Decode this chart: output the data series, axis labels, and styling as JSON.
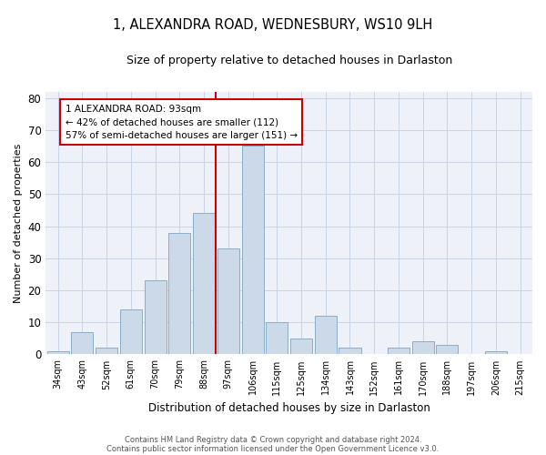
{
  "title": "1, ALEXANDRA ROAD, WEDNESBURY, WS10 9LH",
  "subtitle": "Size of property relative to detached houses in Darlaston",
  "xlabel": "Distribution of detached houses by size in Darlaston",
  "ylabel": "Number of detached properties",
  "footer1": "Contains HM Land Registry data © Crown copyright and database right 2024.",
  "footer2": "Contains public sector information licensed under the Open Government Licence v3.0.",
  "categories": [
    "34sqm",
    "43sqm",
    "52sqm",
    "61sqm",
    "70sqm",
    "79sqm",
    "88sqm",
    "97sqm",
    "106sqm",
    "115sqm",
    "125sqm",
    "134sqm",
    "143sqm",
    "152sqm",
    "161sqm",
    "170sqm",
    "188sqm",
    "197sqm",
    "206sqm",
    "215sqm"
  ],
  "values": [
    1,
    7,
    2,
    14,
    23,
    38,
    44,
    33,
    65,
    10,
    5,
    12,
    2,
    0,
    2,
    4,
    3,
    0,
    1,
    0
  ],
  "bar_color": "#ccd9e8",
  "bar_edge_color": "#8aaec8",
  "vline_bin_index": 6,
  "vline_color": "#cc0000",
  "annotation_text": "1 ALEXANDRA ROAD: 93sqm\n← 42% of detached houses are smaller (112)\n57% of semi-detached houses are larger (151) →",
  "annotation_box_color": "#ffffff",
  "annotation_box_edge": "#cc0000",
  "grid_color": "#c8d4e4",
  "background_color": "#ffffff",
  "ax_background_color": "#eef2f8",
  "ylim": [
    0,
    82
  ],
  "yticks": [
    0,
    10,
    20,
    30,
    40,
    50,
    60,
    70,
    80
  ]
}
